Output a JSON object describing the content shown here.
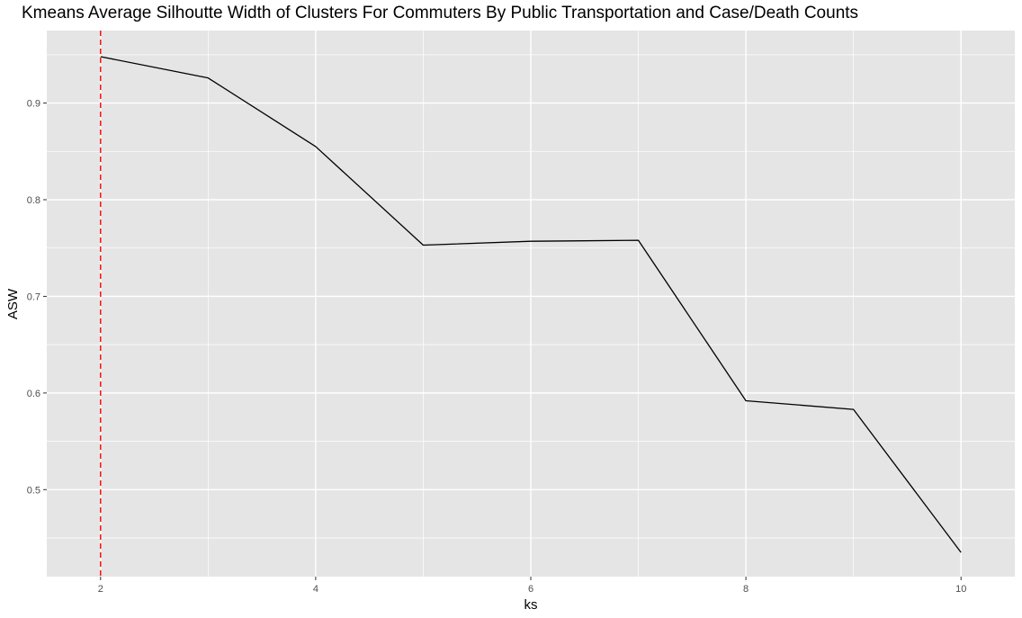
{
  "chart_data": {
    "type": "line",
    "title": "Kmeans Average Silhoutte Width of Clusters For Commuters By Public Transportation and Case/Death Counts",
    "xlabel": "ks",
    "ylabel": "ASW",
    "x": [
      2,
      3,
      4,
      5,
      6,
      7,
      8,
      9,
      10
    ],
    "series": [
      {
        "values": [
          0.948,
          0.926,
          0.855,
          0.753,
          0.757,
          0.758,
          0.592,
          0.583,
          0.435
        ],
        "color": "#000000"
      }
    ],
    "reference_lines": [
      {
        "orientation": "vertical",
        "x": 2,
        "color": "#ff0000",
        "style": "dashed"
      }
    ],
    "xlim": [
      1.5,
      10.5
    ],
    "ylim": [
      0.41,
      0.975
    ],
    "x_ticks": [
      2,
      4,
      6,
      8,
      10
    ],
    "x_tick_labels": [
      "2",
      "4",
      "6",
      "8",
      "10"
    ],
    "y_ticks": [
      0.5,
      0.6,
      0.7,
      0.8,
      0.9
    ],
    "y_tick_labels": [
      "0.5",
      "0.6",
      "0.7",
      "0.8",
      "0.9"
    ],
    "grid": true,
    "panel_background": "#e5e5e5",
    "grid_color": "#ffffff",
    "legend": "none"
  }
}
